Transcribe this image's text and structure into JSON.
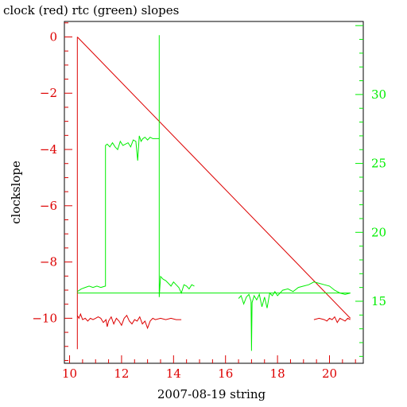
{
  "chart_data": {
    "type": "line",
    "title": "clock (red) rtc (green) slopes",
    "xlabel": "2007-08-19 string",
    "ylabel": "clockslope",
    "ylabel_right": "",
    "xlim": [
      9.8,
      21.3
    ],
    "ylim": [
      -11.6,
      0.55
    ],
    "ylim_right": [
      10.5,
      35.3
    ],
    "x_ticks": [
      10,
      12,
      14,
      16,
      18,
      20
    ],
    "y_ticks": [
      0,
      -2,
      -4,
      -6,
      -8,
      -10
    ],
    "y_ticks_right": [
      15,
      20,
      25,
      30
    ],
    "grid": false,
    "colors": {
      "left_axis": "#dd0000",
      "right_axis": "#00ee00",
      "frame": "#000000"
    },
    "series": [
      {
        "name": "clock",
        "axis": "left",
        "color": "#dd0000",
        "x": [
          10.3,
          10.3,
          10.3,
          10.36,
          10.42,
          10.5,
          10.6,
          10.7,
          10.8,
          10.9,
          11.0,
          11.1,
          11.2,
          11.3,
          11.4,
          11.45,
          11.5,
          11.6,
          11.7,
          11.8,
          11.9,
          12.0,
          12.1,
          12.2,
          12.3,
          12.4,
          12.5,
          12.6,
          12.7,
          12.8,
          12.9,
          13.0,
          13.1,
          13.2,
          13.3,
          13.5,
          13.7,
          13.9,
          14.1,
          14.3
        ],
        "y": [
          0.0,
          -11.1,
          -9.9,
          -10.0,
          -9.85,
          -10.05,
          -10.0,
          -10.1,
          -10.0,
          -10.05,
          -10.0,
          -9.95,
          -10.0,
          -10.15,
          -10.05,
          -10.3,
          -10.1,
          -9.95,
          -10.2,
          -10.0,
          -10.1,
          -10.25,
          -10.0,
          -9.9,
          -10.1,
          -10.2,
          -10.05,
          -10.1,
          -9.95,
          -10.2,
          -10.1,
          -10.35,
          -10.1,
          -10.0,
          -10.05,
          -10.0,
          -10.05,
          -10.0,
          -10.05,
          -10.05
        ]
      },
      {
        "name": "clock",
        "axis": "left",
        "color": "#dd0000",
        "x": [
          10.3,
          20.8
        ],
        "y": [
          0.0,
          -10.0
        ]
      },
      {
        "name": "clock",
        "axis": "left",
        "color": "#dd0000",
        "x": [
          19.4,
          19.6,
          19.8,
          19.9,
          20.0,
          20.1,
          20.2,
          20.3,
          20.4,
          20.5,
          20.6,
          20.7,
          20.8
        ],
        "y": [
          -10.05,
          -10.0,
          -10.05,
          -10.1,
          -10.0,
          -10.05,
          -9.95,
          -10.15,
          -10.0,
          -10.05,
          -10.1,
          -10.0,
          -10.05
        ]
      },
      {
        "name": "rtc",
        "axis": "right",
        "color": "#00ee00",
        "x": [
          10.3,
          10.45,
          10.6,
          10.75,
          10.9,
          11.05,
          11.2,
          11.38,
          11.38,
          11.45,
          11.55,
          11.65,
          11.75,
          11.85,
          11.95,
          12.05,
          12.15,
          12.25,
          12.35,
          12.45,
          12.55,
          12.62,
          12.68,
          12.75,
          12.82,
          12.9,
          13.0,
          13.1,
          13.2,
          13.3,
          13.45,
          13.45,
          13.45,
          13.5,
          13.6,
          13.7,
          13.8,
          13.9,
          14.0,
          14.1,
          14.2,
          14.3,
          14.4,
          14.5,
          14.6,
          14.7,
          14.8
        ],
        "y": [
          15.7,
          15.9,
          16.0,
          16.1,
          16.0,
          16.1,
          16.0,
          16.1,
          26.3,
          26.4,
          26.2,
          26.5,
          26.2,
          26.0,
          26.6,
          26.3,
          26.4,
          26.5,
          26.2,
          26.7,
          26.6,
          25.2,
          27.0,
          26.6,
          26.8,
          26.9,
          26.7,
          26.9,
          26.8,
          26.8,
          26.8,
          34.3,
          15.3,
          16.8,
          16.6,
          16.5,
          16.3,
          16.1,
          16.4,
          16.2,
          16.0,
          15.6,
          16.2,
          16.1,
          15.9,
          16.2,
          16.1
        ]
      },
      {
        "name": "rtc",
        "axis": "right",
        "color": "#00ee00",
        "x": [
          16.5,
          16.6,
          16.7,
          16.8,
          16.9,
          16.98,
          17.0,
          17.02,
          17.1,
          17.2,
          17.3,
          17.4,
          17.5,
          17.6,
          17.7,
          17.8,
          17.9,
          18.0,
          18.2,
          18.4,
          18.6,
          18.8,
          19.0,
          19.2,
          19.4,
          19.6,
          19.8,
          20.0,
          20.2,
          20.4,
          20.6,
          20.8
        ],
        "y": [
          15.2,
          15.4,
          14.8,
          15.3,
          15.5,
          15.0,
          11.4,
          14.9,
          15.4,
          15.1,
          15.5,
          14.6,
          15.3,
          14.5,
          15.6,
          15.4,
          15.7,
          15.4,
          15.8,
          15.9,
          15.7,
          16.0,
          16.1,
          16.2,
          16.4,
          16.3,
          16.2,
          16.1,
          15.8,
          15.6,
          15.5,
          15.6
        ]
      },
      {
        "name": "rtc",
        "axis": "right",
        "color": "#00ee00",
        "x": [
          10.3,
          20.8
        ],
        "y": [
          15.6,
          15.6
        ]
      }
    ]
  }
}
